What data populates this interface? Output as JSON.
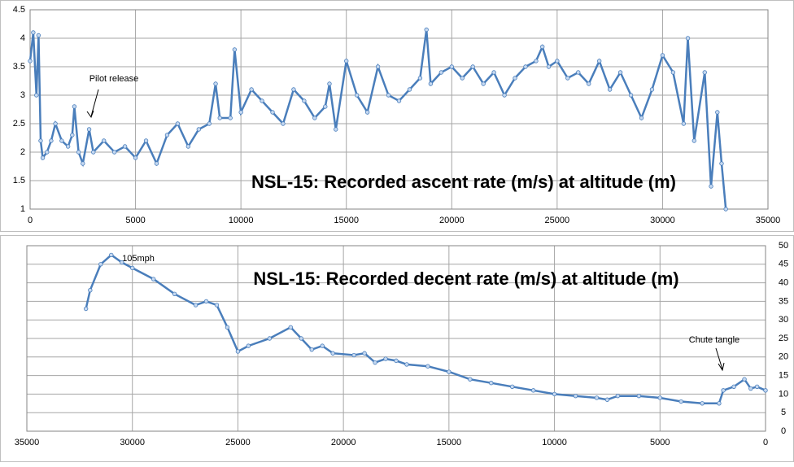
{
  "chart_data": [
    {
      "type": "line",
      "title": "NSL-15: Recorded ascent rate (m/s) at altitude (m)",
      "color": "#4a7ebb",
      "grid": true,
      "y_axis_side": "left",
      "annotations": [
        "Pilot release"
      ],
      "x": [
        0,
        150,
        300,
        400,
        500,
        600,
        800,
        1000,
        1200,
        1500,
        1800,
        2000,
        2100,
        2300,
        2500,
        2800,
        3000,
        3500,
        4000,
        4500,
        5000,
        5500,
        6000,
        6500,
        7000,
        7500,
        8000,
        8500,
        8800,
        9000,
        9500,
        9700,
        10000,
        10500,
        11000,
        11500,
        12000,
        12500,
        13000,
        13500,
        14000,
        14200,
        14500,
        15000,
        15500,
        16000,
        16500,
        17000,
        17500,
        18000,
        18500,
        18800,
        19000,
        19500,
        20000,
        20500,
        21000,
        21500,
        22000,
        22500,
        23000,
        23500,
        24000,
        24300,
        24600,
        25000,
        25500,
        26000,
        26500,
        27000,
        27500,
        28000,
        28500,
        29000,
        29500,
        30000,
        30500,
        31000,
        31200,
        31500,
        32000,
        32300,
        32600,
        32800,
        33000
      ],
      "values": [
        3.6,
        4.1,
        3.0,
        4.05,
        2.2,
        1.9,
        2.0,
        2.2,
        2.5,
        2.2,
        2.1,
        2.3,
        2.8,
        2.0,
        1.8,
        2.4,
        2.0,
        2.2,
        2.0,
        2.1,
        1.9,
        2.2,
        1.8,
        2.3,
        2.5,
        2.1,
        2.4,
        2.5,
        3.2,
        2.6,
        2.6,
        3.8,
        2.7,
        3.1,
        2.9,
        2.7,
        2.5,
        3.1,
        2.9,
        2.6,
        2.8,
        3.2,
        2.4,
        3.6,
        3.0,
        2.7,
        3.5,
        3.0,
        2.9,
        3.1,
        3.3,
        4.15,
        3.2,
        3.4,
        3.5,
        3.3,
        3.5,
        3.2,
        3.4,
        3.0,
        3.3,
        3.5,
        3.6,
        3.85,
        3.5,
        3.6,
        3.3,
        3.4,
        3.2,
        3.6,
        3.1,
        3.4,
        3.0,
        2.6,
        3.1,
        3.7,
        3.4,
        2.5,
        4.0,
        2.2,
        3.4,
        1.4,
        2.7,
        1.8,
        1.0
      ],
      "xlim": [
        0,
        35000
      ],
      "ylim": [
        1,
        4.5
      ],
      "xticks": [
        0,
        5000,
        10000,
        15000,
        20000,
        25000,
        30000,
        35000
      ],
      "yticks": [
        1,
        1.5,
        2,
        2.5,
        3,
        3.5,
        4,
        4.5
      ]
    },
    {
      "type": "line",
      "title": "NSL-15: Recorded decent rate (m/s) at altitude (m)",
      "color": "#4a7ebb",
      "grid": true,
      "y_axis_side": "right",
      "annotations": [
        "105mph",
        "Chute tangle"
      ],
      "x": [
        32200,
        32000,
        31500,
        31000,
        30500,
        30000,
        29000,
        28000,
        27000,
        26500,
        26000,
        25500,
        25000,
        24500,
        23500,
        22500,
        22000,
        21500,
        21000,
        20500,
        19500,
        19000,
        18500,
        18000,
        17500,
        17000,
        16000,
        15000,
        14000,
        13000,
        12000,
        11000,
        10000,
        9000,
        8000,
        7500,
        7000,
        6000,
        5000,
        4000,
        3000,
        2200,
        2000,
        1500,
        1000,
        700,
        400,
        0
      ],
      "values": [
        33,
        38,
        45,
        47.5,
        45.5,
        44,
        41,
        37,
        34,
        35,
        34,
        28,
        21.5,
        23,
        25,
        28,
        25,
        22,
        23,
        21,
        20.5,
        21,
        18.5,
        19.5,
        19,
        18,
        17.5,
        16,
        14,
        13,
        12,
        11,
        10,
        9.5,
        9,
        8.5,
        9.5,
        9.5,
        9,
        8,
        7.5,
        7.5,
        11,
        12,
        14,
        11.5,
        12,
        11
      ],
      "xlim": [
        35000,
        0
      ],
      "ylim": [
        0,
        50
      ],
      "xticks": [
        35000,
        30000,
        25000,
        20000,
        15000,
        10000,
        5000,
        0
      ],
      "yticks": [
        0,
        5,
        10,
        15,
        20,
        25,
        30,
        35,
        40,
        45,
        50
      ]
    }
  ]
}
